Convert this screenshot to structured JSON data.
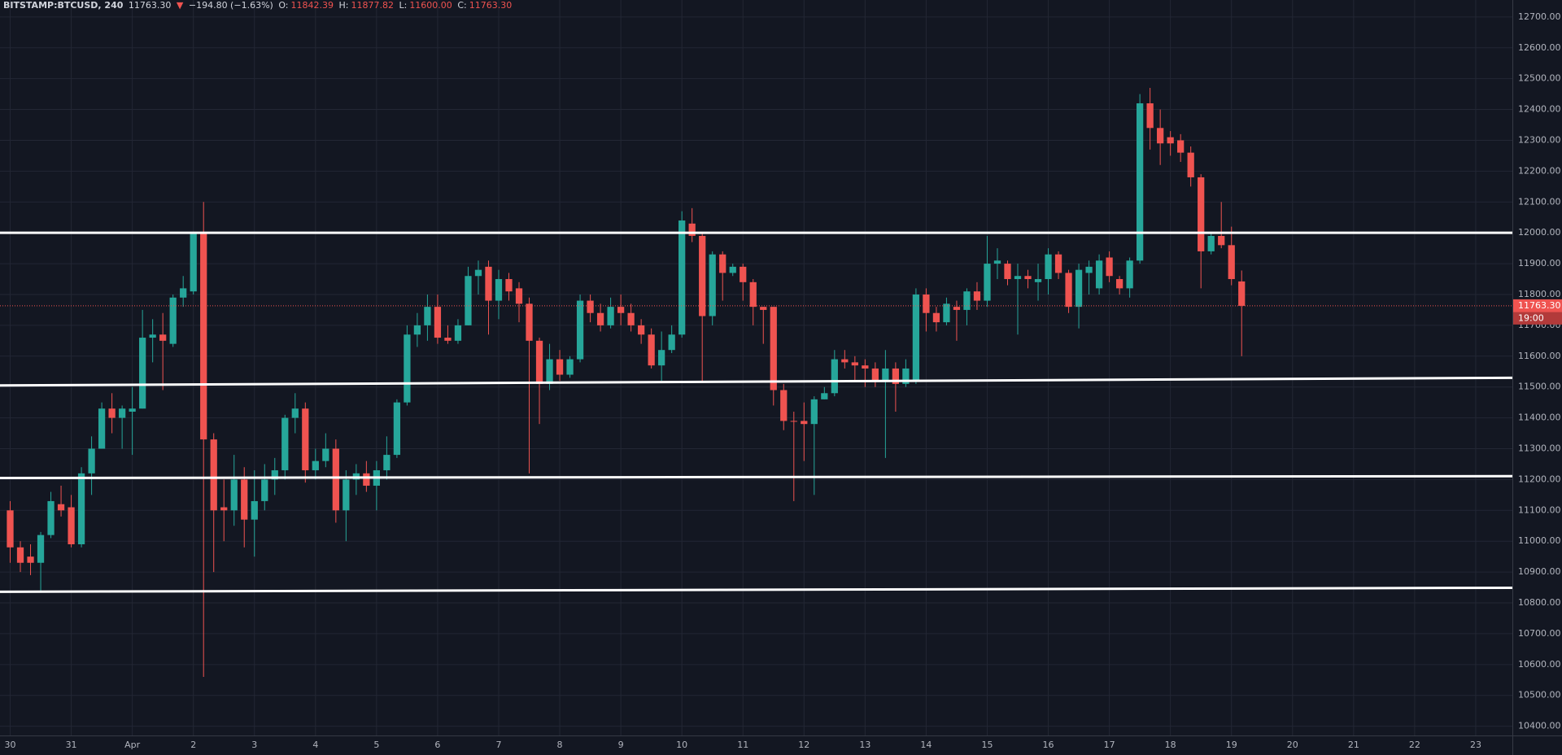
{
  "header": {
    "symbol": "BITSTAMP:BTCUSD, 240",
    "last": "11763.30",
    "arrow": "▼",
    "change": "−194.80 (−1.63%)",
    "ohlc_labels": [
      "O:",
      "H:",
      "L:",
      "C:"
    ],
    "ohlc_values": [
      "11842.39",
      "11877.82",
      "11600.00",
      "11763.30"
    ]
  },
  "chart_data": {
    "type": "candlestick",
    "up_color": "#26a69a",
    "down_color": "#ef5350",
    "grid": true,
    "xlim": [
      -1,
      147.6
    ],
    "ylim": [
      10370,
      12755
    ],
    "xticks": [
      {
        "value": 0,
        "label": "30"
      },
      {
        "value": 6,
        "label": "31"
      },
      {
        "value": 12,
        "label": "Apr"
      },
      {
        "value": 18,
        "label": "2"
      },
      {
        "value": 24,
        "label": "3"
      },
      {
        "value": 30,
        "label": "4"
      },
      {
        "value": 36,
        "label": "5"
      },
      {
        "value": 42,
        "label": "6"
      },
      {
        "value": 48,
        "label": "7"
      },
      {
        "value": 54,
        "label": "8"
      },
      {
        "value": 60,
        "label": "9"
      },
      {
        "value": 66,
        "label": "10"
      },
      {
        "value": 72,
        "label": "11"
      },
      {
        "value": 78,
        "label": "12"
      },
      {
        "value": 84,
        "label": "13"
      },
      {
        "value": 90,
        "label": "14"
      },
      {
        "value": 96,
        "label": "15"
      },
      {
        "value": 102,
        "label": "16"
      },
      {
        "value": 108,
        "label": "17"
      },
      {
        "value": 114,
        "label": "18"
      },
      {
        "value": 120,
        "label": "19"
      },
      {
        "value": 126,
        "label": "20"
      },
      {
        "value": 132,
        "label": "21"
      },
      {
        "value": 138,
        "label": "22"
      },
      {
        "value": 144,
        "label": "23"
      }
    ],
    "yticks": [
      {
        "value": 10400,
        "label": "10400.00"
      },
      {
        "value": 10500,
        "label": "10500.00"
      },
      {
        "value": 10600,
        "label": "10600.00"
      },
      {
        "value": 10700,
        "label": "10700.00"
      },
      {
        "value": 10800,
        "label": "10800.00"
      },
      {
        "value": 10900,
        "label": "10900.00"
      },
      {
        "value": 11000,
        "label": "11000.00"
      },
      {
        "value": 11100,
        "label": "11100.00"
      },
      {
        "value": 11200,
        "label": "11200.00"
      },
      {
        "value": 11300,
        "label": "11300.00"
      },
      {
        "value": 11400,
        "label": "11400.00"
      },
      {
        "value": 11500,
        "label": "11500.00"
      },
      {
        "value": 11600,
        "label": "11600.00"
      },
      {
        "value": 11700,
        "label": "11700.00"
      },
      {
        "value": 11800,
        "label": "11800.00"
      },
      {
        "value": 11900,
        "label": "11900.00"
      },
      {
        "value": 12000,
        "label": "12000.00"
      },
      {
        "value": 12100,
        "label": "12100.00"
      },
      {
        "value": 12200,
        "label": "12200.00"
      },
      {
        "value": 12300,
        "label": "12300.00"
      },
      {
        "value": 12400,
        "label": "12400.00"
      },
      {
        "value": 12500,
        "label": "12500.00"
      },
      {
        "value": 12600,
        "label": "12600.00"
      },
      {
        "value": 12700,
        "label": "12700.00"
      }
    ],
    "open": [
      11100,
      10980,
      10950,
      10930,
      11020,
      11120,
      11110,
      10990,
      11220,
      11300,
      11430,
      11400,
      11420,
      11430,
      11660,
      11670,
      11640,
      11790,
      11810,
      12000,
      11330,
      11110,
      11100,
      11200,
      11070,
      11130,
      11200,
      11230,
      11400,
      11430,
      11230,
      11260,
      11300,
      11100,
      11200,
      11220,
      11180,
      11230,
      11280,
      11450,
      11670,
      11700,
      11760,
      11660,
      11650,
      11700,
      11860,
      11890,
      11780,
      11850,
      11820,
      11770,
      11650,
      11510,
      11590,
      11540,
      11590,
      11780,
      11740,
      11700,
      11760,
      11740,
      11700,
      11670,
      11570,
      11620,
      11670,
      12030,
      11990,
      11730,
      11930,
      11870,
      11890,
      11840,
      11760,
      11760,
      11490,
      11390,
      11390,
      11380,
      11460,
      11480,
      11590,
      11580,
      11570,
      11560,
      11520,
      11560,
      11510,
      11520,
      11800,
      11740,
      11710,
      11760,
      11750,
      11810,
      11780,
      11900,
      11900,
      11850,
      11860,
      11840,
      11850,
      11930,
      11870,
      11760,
      11870,
      11820,
      11920,
      11850,
      11820,
      11910,
      12420,
      12340,
      12310,
      12300,
      12260,
      12180,
      11940,
      11990,
      11960,
      11842.39
    ],
    "high": [
      11130,
      11000,
      10990,
      11030,
      11160,
      11180,
      11150,
      11240,
      11340,
      11450,
      11480,
      11440,
      11500,
      11750,
      11720,
      11740,
      11800,
      11860,
      12000,
      12100,
      11350,
      11200,
      11280,
      11240,
      11230,
      11250,
      11270,
      11410,
      11480,
      11450,
      11300,
      11350,
      11330,
      11230,
      11250,
      11260,
      11260,
      11340,
      11460,
      11700,
      11740,
      11800,
      11800,
      11700,
      11720,
      11890,
      11910,
      11910,
      11880,
      11870,
      11840,
      11790,
      11660,
      11640,
      11620,
      11600,
      11800,
      11800,
      11770,
      11790,
      11800,
      11770,
      11720,
      11690,
      11680,
      11700,
      12070,
      12080,
      12000,
      11940,
      11940,
      11900,
      11900,
      11850,
      11760,
      11760,
      11510,
      11420,
      11450,
      11470,
      11500,
      11620,
      11620,
      11600,
      11590,
      11580,
      11620,
      11580,
      11590,
      11820,
      11820,
      11760,
      11790,
      11780,
      11820,
      11840,
      11990,
      11950,
      11910,
      11900,
      11880,
      11900,
      11950,
      11940,
      11880,
      11900,
      11910,
      11930,
      11940,
      11860,
      11920,
      12450,
      12470,
      12400,
      12330,
      12320,
      12280,
      12190,
      12000,
      12100,
      12020,
      11877.82
    ],
    "low": [
      10930,
      10900,
      10890,
      10840,
      11010,
      11080,
      10980,
      10980,
      11150,
      11300,
      11350,
      11300,
      11280,
      11430,
      11580,
      11490,
      11630,
      11760,
      11800,
      10560,
      10900,
      11000,
      11050,
      10980,
      10950,
      11100,
      11150,
      11200,
      11350,
      11190,
      11200,
      11240,
      11060,
      11000,
      11150,
      11160,
      11100,
      11200,
      11270,
      11440,
      11630,
      11650,
      11640,
      11640,
      11640,
      11700,
      11800,
      11670,
      11720,
      11780,
      11710,
      11220,
      11380,
      11490,
      11520,
      11530,
      11580,
      11710,
      11680,
      11690,
      11700,
      11680,
      11640,
      11560,
      11520,
      11610,
      11660,
      11970,
      11520,
      11700,
      11780,
      11860,
      11780,
      11700,
      11640,
      11440,
      11360,
      11130,
      11260,
      11150,
      11460,
      11470,
      11560,
      11520,
      11500,
      11500,
      11270,
      11420,
      11500,
      11510,
      11680,
      11680,
      11700,
      11650,
      11700,
      11750,
      11760,
      11850,
      11830,
      11670,
      11820,
      11780,
      11800,
      11850,
      11740,
      11690,
      11800,
      11800,
      11840,
      11800,
      11790,
      11900,
      12270,
      12220,
      12250,
      12230,
      12150,
      11820,
      11930,
      11950,
      11830,
      11600
    ],
    "close": [
      10980,
      10930,
      10930,
      11020,
      11130,
      11100,
      10990,
      11220,
      11300,
      11430,
      11400,
      11430,
      11430,
      11660,
      11670,
      11650,
      11790,
      11820,
      12000,
      11330,
      11100,
      11100,
      11200,
      11070,
      11130,
      11200,
      11230,
      11400,
      11430,
      11230,
      11260,
      11300,
      11100,
      11200,
      11220,
      11180,
      11230,
      11280,
      11450,
      11670,
      11700,
      11760,
      11660,
      11650,
      11700,
      11860,
      11880,
      11780,
      11850,
      11810,
      11770,
      11650,
      11510,
      11590,
      11540,
      11590,
      11780,
      11740,
      11700,
      11760,
      11740,
      11700,
      11670,
      11570,
      11620,
      11670,
      12040,
      11990,
      11730,
      11930,
      11870,
      11890,
      11840,
      11760,
      11750,
      11490,
      11390,
      11390,
      11380,
      11460,
      11480,
      11590,
      11580,
      11570,
      11560,
      11520,
      11560,
      11510,
      11560,
      11800,
      11740,
      11710,
      11770,
      11750,
      11810,
      11780,
      11900,
      11910,
      11850,
      11860,
      11850,
      11850,
      11930,
      11870,
      11760,
      11880,
      11890,
      11910,
      11860,
      11820,
      11910,
      12420,
      12340,
      12290,
      12290,
      12260,
      12180,
      11940,
      11990,
      11960,
      11850,
      11763.3
    ],
    "levels": [
      {
        "from": 12000,
        "to": 12000
      },
      {
        "from": 11505,
        "to": 11530
      },
      {
        "from": 11205,
        "to": 11211
      },
      {
        "from": 10836,
        "to": 10849
      }
    ],
    "last_price_label": "11763.30",
    "countdown": "19:00"
  }
}
